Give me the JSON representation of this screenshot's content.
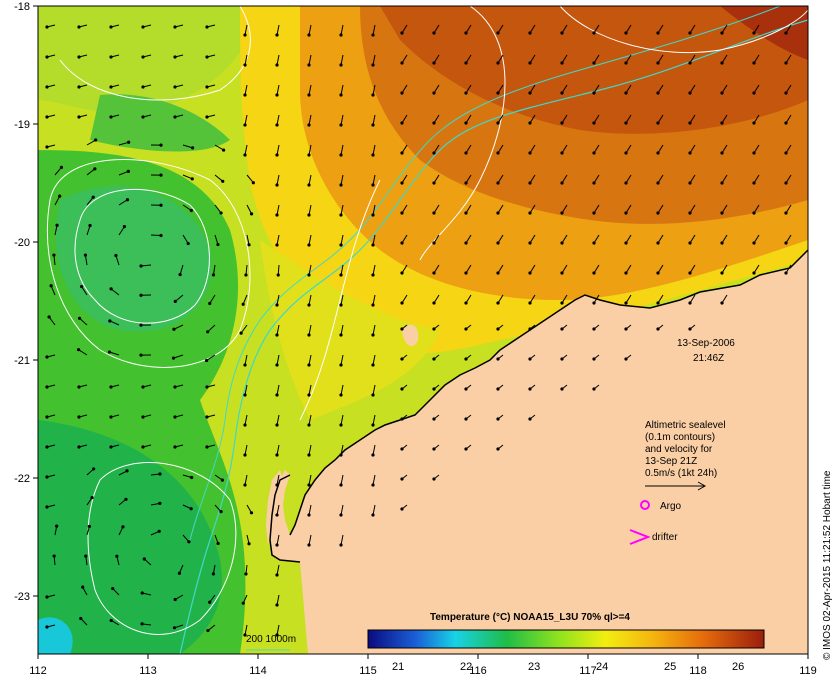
{
  "map": {
    "lon_ticks": [
      "112",
      "113",
      "114",
      "115",
      "116",
      "117",
      "118",
      "119"
    ],
    "lat_ticks": [
      "-18",
      "-19",
      "-20",
      "-21",
      "-22",
      "-23"
    ],
    "date": "13-Sep-2006",
    "time": "21:46Z",
    "legend_lines": [
      "Altimetric sealevel",
      "(0.1m contours)",
      "and velocity for",
      "13-Sep 21Z",
      "0.5m/s (1kt 24h)"
    ],
    "argo_label": "Argo",
    "drifter_label": "drifter",
    "isobath_label": "200  1000m",
    "colorbar_title": "Temperature (°C) NOAA15_L3U 70% ql>=4",
    "colorbar_ticks": [
      "21",
      "22",
      "23",
      "24",
      "25",
      "26"
    ],
    "credit": "© IMOS 02-Apr-2015 11:21:52 Hobart time",
    "colors": {
      "land": "#fbcfa5",
      "sst_cold": "#22aa44",
      "sst_mid": "#e6e600",
      "sst_warm": "#cc5500",
      "isobath": "#40d8c8",
      "contour": "#ffffff",
      "argo": "#ff00ff"
    }
  }
}
